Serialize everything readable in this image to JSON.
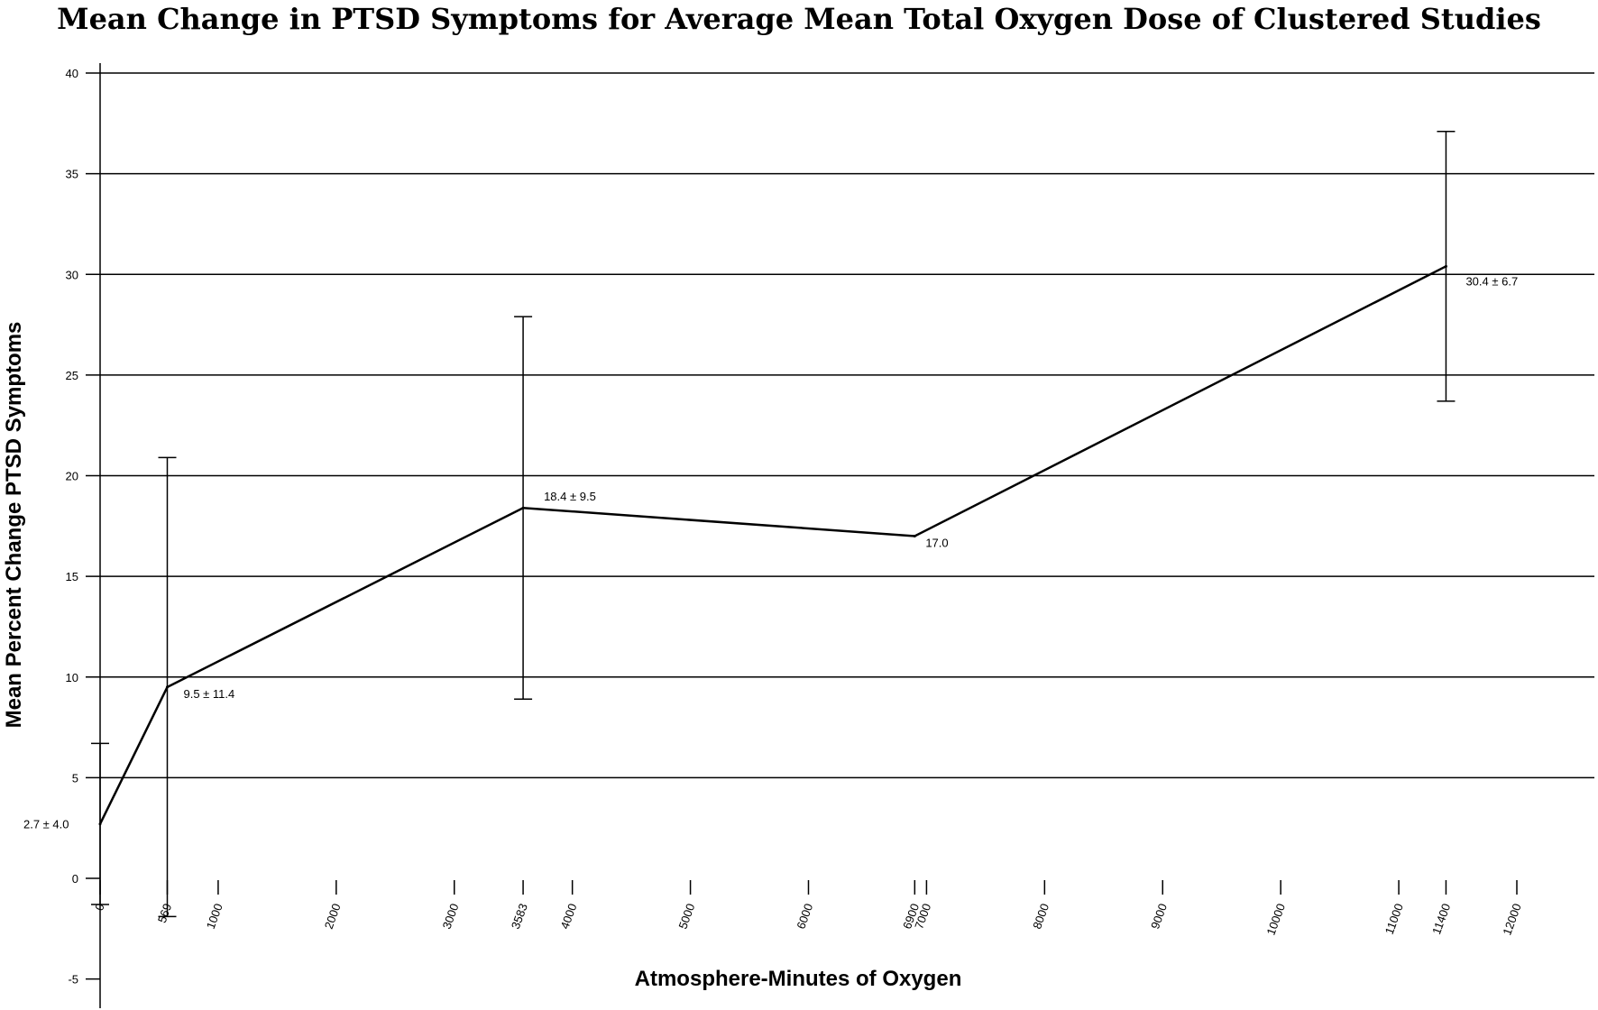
{
  "chart_data": {
    "type": "line",
    "title": "Mean Change in PTSD Symptoms for Average Mean Total Oxygen Dose of Clustered Studies",
    "xlabel": "Atmosphere-Minutes of Oxygen",
    "ylabel": "Mean Percent Change PTSD Symptoms",
    "ylim": [
      -5,
      40
    ],
    "xlim": [
      0,
      12000
    ],
    "yticks": [
      -5,
      0,
      5,
      10,
      15,
      20,
      25,
      30,
      35,
      40
    ],
    "xticks": [
      0,
      569,
      1000,
      2000,
      3000,
      3583,
      4000,
      5000,
      6000,
      6900,
      7000,
      8000,
      9000,
      10000,
      11000,
      11400,
      12000
    ],
    "xtick_labels": [
      "0",
      "569",
      "1000",
      "2000",
      "3000",
      "3583",
      "4000",
      "5000",
      "6000",
      "6900",
      "7000",
      "8000",
      "9000",
      "10000",
      "11000",
      "11400",
      "12000"
    ],
    "grid": "horizontal",
    "series": [
      {
        "points": [
          {
            "x": 0,
            "y": 2.7,
            "err": 4.0,
            "label": "2.7 ± 4.0"
          },
          {
            "x": 569,
            "y": 9.5,
            "err": 11.4,
            "label": "9.5 ± 11.4"
          },
          {
            "x": 3583,
            "y": 18.4,
            "err": 9.5,
            "label": "18.4 ± 9.5"
          },
          {
            "x": 6900,
            "y": 17.0,
            "err": null,
            "label": "17.0"
          },
          {
            "x": 11400,
            "y": 30.4,
            "err": 6.7,
            "label": "30.4 ± 6.7"
          }
        ]
      }
    ]
  }
}
